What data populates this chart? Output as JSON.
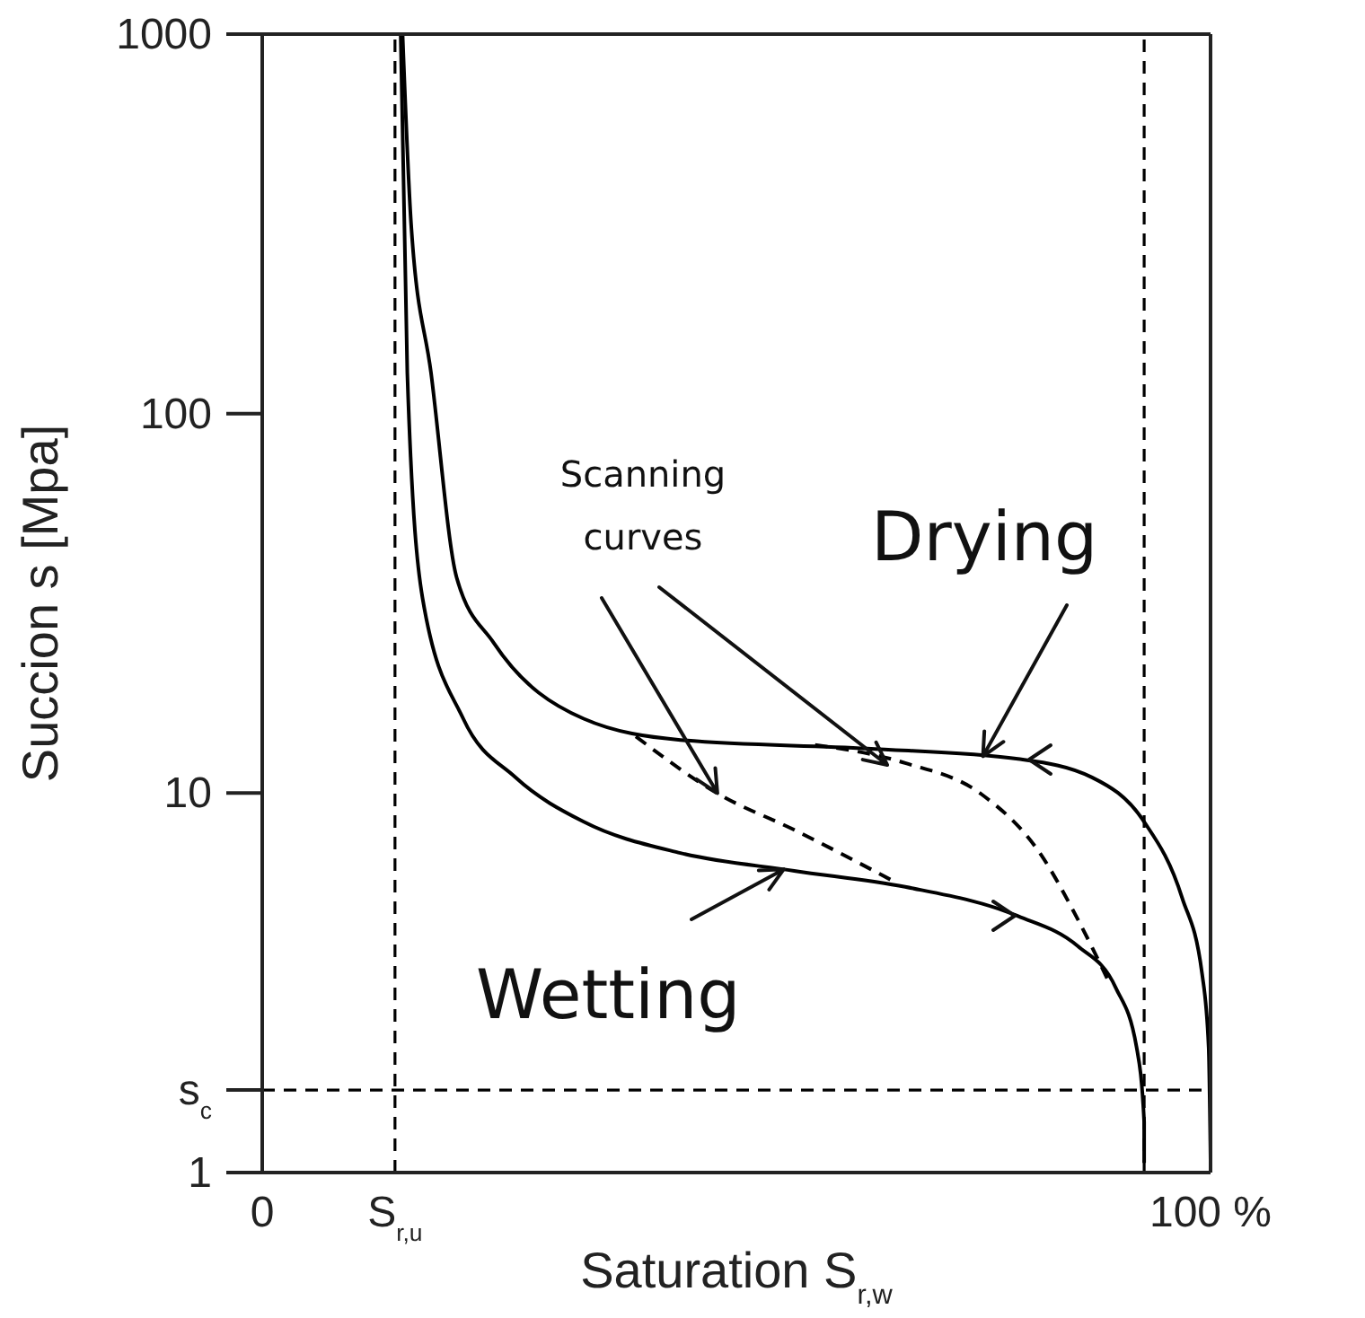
{
  "chart_data": {
    "type": "line",
    "xlabel": "Saturation S$_{r,w}$",
    "ylabel": "Succion s [Mpa]",
    "xlim": [
      0,
      100
    ],
    "xticks": [
      0,
      {
        "value": 14,
        "label": "S$_{r,u}$"
      },
      {
        "value": 100,
        "label": "100 %"
      }
    ],
    "ylim": [
      1,
      1000
    ],
    "yticks": [
      1,
      {
        "value": 1.65,
        "label": "s$_{c}$"
      },
      10,
      100,
      1000
    ],
    "log": "y",
    "marker": "none",
    "series": [
      {
        "color": "#000000",
        "line_style": "solid",
        "x": [
          14.8,
          15.7,
          17.8,
          20.5,
          24.4,
          33.9,
          44.1,
          63.8,
          79.7,
          87.5,
          93.0,
          97.0,
          99.1,
          99.8,
          100
        ],
        "values": [
          1000,
          316,
          128,
          37,
          24.9,
          15.7,
          13.8,
          13.1,
          12.3,
          11.0,
          8.4,
          5.3,
          3.35,
          2.14,
          1.08
        ]
      },
      {
        "color": "#000000",
        "line_style": "solid",
        "x": [
          14.6,
          15.3,
          16.9,
          21.2,
          26.7,
          33.9,
          44.1,
          56.1,
          67.8,
          79.7,
          86.0,
          90.0,
          92.2,
          93.0,
          93.0
        ],
        "values": [
          1000,
          128,
          32.7,
          15.7,
          11.0,
          8.4,
          6.95,
          6.24,
          5.66,
          4.74,
          3.95,
          3.07,
          2.14,
          1.36,
          1.06
        ]
      },
      {
        "color": "#000000",
        "line_style": "dashed",
        "x": [
          39.4,
          48.1,
          56.1,
          67.0
        ],
        "values": [
          14.1,
          9.95,
          8.0,
          5.78
        ]
      },
      {
        "color": "#000000",
        "line_style": "dashed",
        "x": [
          58.3,
          67.8,
          75.8,
          82.0,
          86.0,
          89.2
        ],
        "values": [
          13.4,
          12.0,
          9.95,
          6.95,
          4.65,
          3.21
        ]
      }
    ],
    "ref_lines": [
      {
        "axis": "x",
        "value": 14,
        "line_style": "dashed",
        "color": "#000000"
      },
      {
        "axis": "x",
        "value": 93,
        "line_style": "dashed",
        "color": "#000000"
      },
      {
        "axis": "y",
        "value": 1.65,
        "line_style": "dashed",
        "color": "#000000"
      }
    ],
    "annotations": [
      {
        "text": "Scanning curves",
        "x": 48,
        "y": 10
      },
      {
        "text": "Drying",
        "x": 76,
        "y": 12.5
      },
      {
        "text": "Wetting",
        "x": 55,
        "y": 6.3
      }
    ]
  }
}
